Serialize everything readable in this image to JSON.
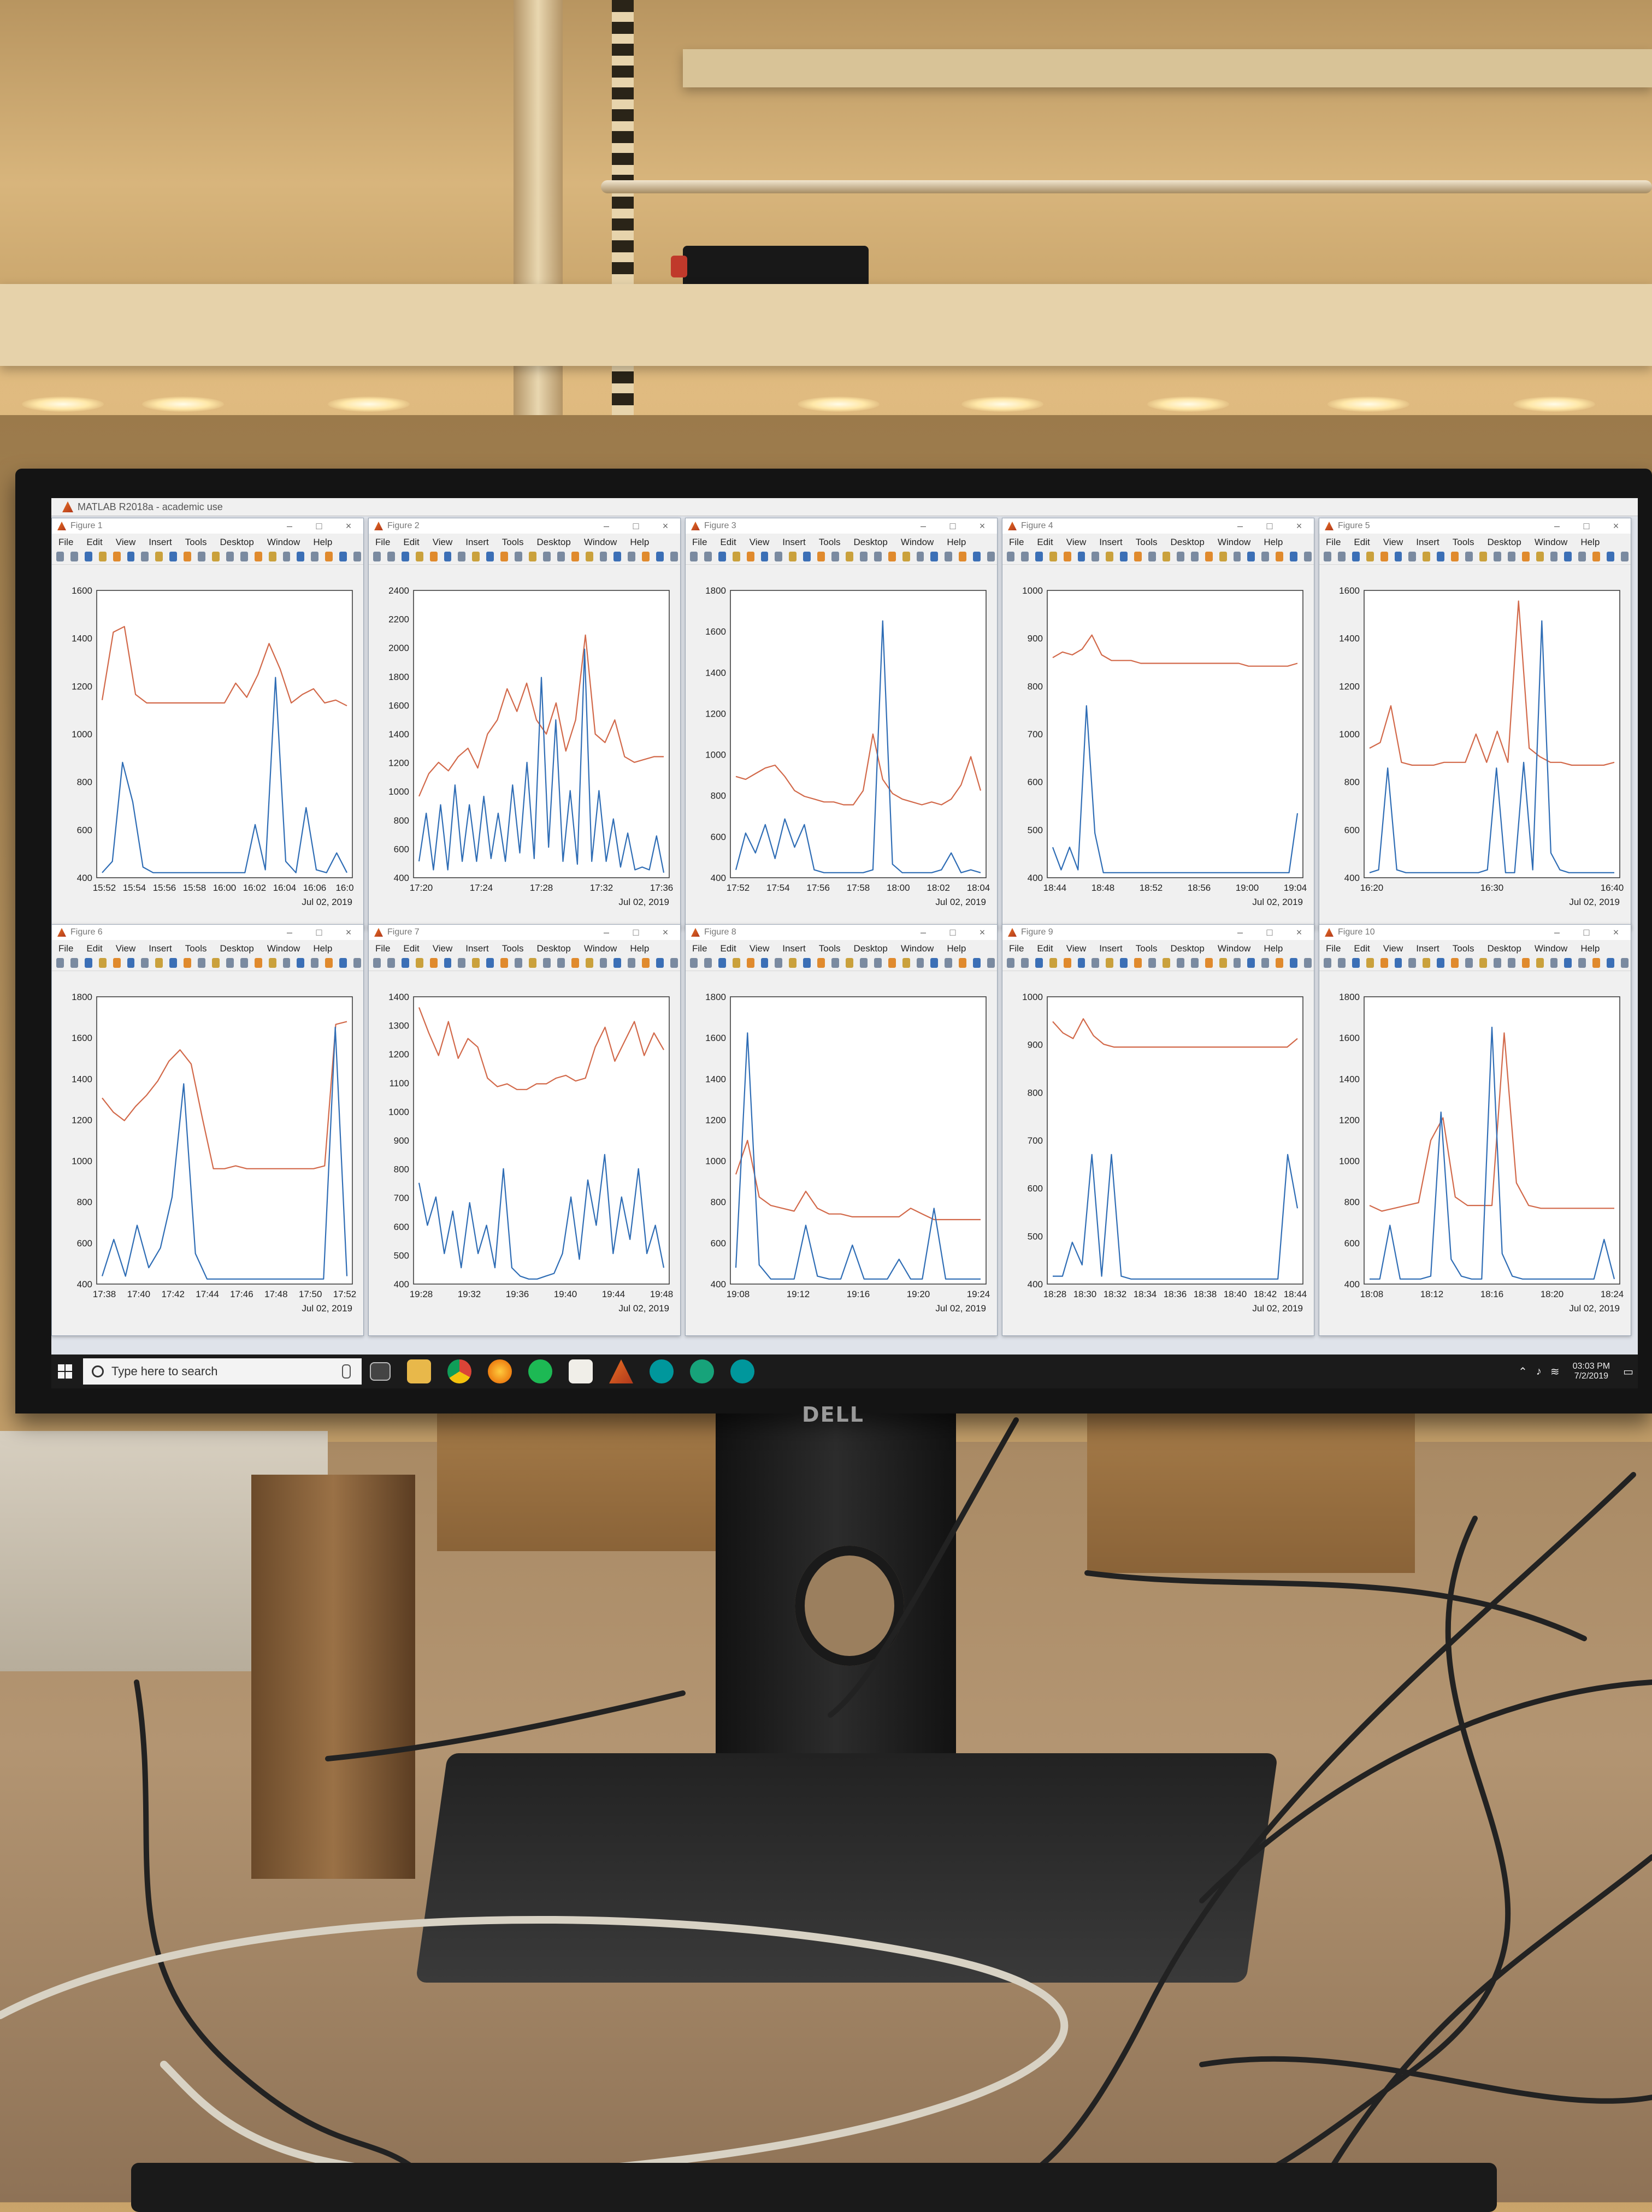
{
  "matlab": {
    "title": "MATLAB R2018a - academic use"
  },
  "menu_labels": [
    "File",
    "Edit",
    "View",
    "Insert",
    "Tools",
    "Desktop",
    "Window",
    "Help"
  ],
  "window_controls": {
    "minimize": "–",
    "maximize": "□",
    "close": "×"
  },
  "figures": [
    {
      "title": "Figure 1",
      "date": "Jul 02, 2019",
      "yticks": [
        "400",
        "600",
        "800",
        "1000",
        "1200",
        "1400",
        "1600"
      ],
      "ylim": [
        400,
        1600
      ],
      "xticks": [
        "15:52",
        "15:54",
        "15:56",
        "15:58",
        "16:00",
        "16:02",
        "16:04",
        "16:06",
        "16:0"
      ],
      "orange": [
        0.62,
        0.86,
        0.88,
        0.64,
        0.61,
        0.61,
        0.61,
        0.61,
        0.61,
        0.61,
        0.61,
        0.61,
        0.68,
        0.63,
        0.71,
        0.82,
        0.73,
        0.61,
        0.64,
        0.66,
        0.61,
        0.62,
        0.6
      ],
      "blue": [
        0.01,
        0.05,
        0.4,
        0.26,
        0.03,
        0.01,
        0.01,
        0.01,
        0.01,
        0.01,
        0.01,
        0.01,
        0.01,
        0.01,
        0.01,
        0.18,
        0.02,
        0.7,
        0.05,
        0.01,
        0.24,
        0.02,
        0.01,
        0.08,
        0.01
      ]
    },
    {
      "title": "Figure 2",
      "date": "Jul 02, 2019",
      "yticks": [
        "400",
        "600",
        "800",
        "1000",
        "1200",
        "1400",
        "1600",
        "1800",
        "2000",
        "2200",
        "2400"
      ],
      "ylim": [
        400,
        2400
      ],
      "xticks": [
        "17:20",
        "17:24",
        "17:28",
        "17:32",
        "17:36"
      ],
      "orange": [
        0.28,
        0.36,
        0.4,
        0.37,
        0.42,
        0.45,
        0.38,
        0.5,
        0.55,
        0.66,
        0.58,
        0.68,
        0.55,
        0.5,
        0.61,
        0.44,
        0.55,
        0.85,
        0.5,
        0.47,
        0.55,
        0.42,
        0.4,
        0.41,
        0.42,
        0.42
      ],
      "blue": [
        0.05,
        0.22,
        0.02,
        0.25,
        0.02,
        0.32,
        0.05,
        0.25,
        0.05,
        0.28,
        0.06,
        0.22,
        0.05,
        0.32,
        0.08,
        0.4,
        0.06,
        0.7,
        0.1,
        0.55,
        0.05,
        0.3,
        0.04,
        0.8,
        0.05,
        0.3,
        0.05,
        0.2,
        0.03,
        0.15,
        0.02,
        0.03,
        0.02,
        0.14,
        0.01
      ]
    },
    {
      "title": "Figure 3",
      "date": "Jul 02, 2019",
      "yticks": [
        "400",
        "600",
        "800",
        "1000",
        "1200",
        "1400",
        "1600",
        "1800"
      ],
      "ylim": [
        400,
        1800
      ],
      "xticks": [
        "17:52",
        "17:54",
        "17:56",
        "17:58",
        "18:00",
        "18:02",
        "18:04"
      ],
      "orange": [
        0.35,
        0.34,
        0.36,
        0.38,
        0.39,
        0.35,
        0.3,
        0.28,
        0.27,
        0.26,
        0.26,
        0.25,
        0.25,
        0.3,
        0.5,
        0.34,
        0.29,
        0.27,
        0.26,
        0.25,
        0.26,
        0.25,
        0.27,
        0.32,
        0.42,
        0.3
      ],
      "blue": [
        0.02,
        0.15,
        0.08,
        0.18,
        0.06,
        0.2,
        0.1,
        0.18,
        0.02,
        0.01,
        0.01,
        0.01,
        0.01,
        0.01,
        0.02,
        0.9,
        0.04,
        0.01,
        0.01,
        0.01,
        0.01,
        0.02,
        0.08,
        0.01,
        0.02,
        0.01
      ]
    },
    {
      "title": "Figure 4",
      "date": "Jul 02, 2019",
      "yticks": [
        "400",
        "500",
        "600",
        "700",
        "800",
        "900",
        "1000"
      ],
      "ylim": [
        400,
        1000
      ],
      "xticks": [
        "18:44",
        "18:48",
        "18:52",
        "18:56",
        "19:00",
        "19:04"
      ],
      "orange": [
        0.77,
        0.79,
        0.78,
        0.8,
        0.85,
        0.78,
        0.76,
        0.76,
        0.76,
        0.75,
        0.75,
        0.75,
        0.75,
        0.75,
        0.75,
        0.75,
        0.75,
        0.75,
        0.75,
        0.75,
        0.74,
        0.74,
        0.74,
        0.74,
        0.74,
        0.75
      ],
      "blue": [
        0.1,
        0.02,
        0.1,
        0.02,
        0.6,
        0.15,
        0.01,
        0.01,
        0.01,
        0.01,
        0.01,
        0.01,
        0.01,
        0.01,
        0.01,
        0.01,
        0.01,
        0.01,
        0.01,
        0.01,
        0.01,
        0.01,
        0.01,
        0.01,
        0.01,
        0.01,
        0.01,
        0.01,
        0.01,
        0.22
      ]
    },
    {
      "title": "Figure 5",
      "date": "Jul 02, 2019",
      "yticks": [
        "400",
        "600",
        "800",
        "1000",
        "1200",
        "1400",
        "1600"
      ],
      "ylim": [
        400,
        1600
      ],
      "xticks": [
        "16:20",
        "16:30",
        "16:40"
      ],
      "orange": [
        0.45,
        0.47,
        0.6,
        0.4,
        0.39,
        0.39,
        0.39,
        0.4,
        0.4,
        0.4,
        0.5,
        0.4,
        0.51,
        0.4,
        0.97,
        0.45,
        0.42,
        0.4,
        0.4,
        0.39,
        0.39,
        0.39,
        0.39,
        0.4
      ],
      "blue": [
        0.01,
        0.02,
        0.38,
        0.02,
        0.01,
        0.01,
        0.01,
        0.01,
        0.01,
        0.01,
        0.01,
        0.01,
        0.01,
        0.02,
        0.38,
        0.01,
        0.01,
        0.4,
        0.02,
        0.9,
        0.08,
        0.02,
        0.01,
        0.01,
        0.01,
        0.01,
        0.01,
        0.01
      ]
    },
    {
      "title": "Figure 6",
      "date": "Jul 02, 2019",
      "yticks": [
        "400",
        "600",
        "800",
        "1000",
        "1200",
        "1400",
        "1600",
        "1800"
      ],
      "ylim": [
        400,
        1800
      ],
      "xticks": [
        "17:38",
        "17:40",
        "17:42",
        "17:44",
        "17:46",
        "17:48",
        "17:50",
        "17:52"
      ],
      "orange": [
        0.65,
        0.6,
        0.57,
        0.62,
        0.66,
        0.71,
        0.78,
        0.82,
        0.77,
        0.58,
        0.4,
        0.4,
        0.41,
        0.4,
        0.4,
        0.4,
        0.4,
        0.4,
        0.4,
        0.4,
        0.41,
        0.91,
        0.92
      ],
      "blue": [
        0.02,
        0.15,
        0.02,
        0.2,
        0.05,
        0.12,
        0.3,
        0.7,
        0.1,
        0.01,
        0.01,
        0.01,
        0.01,
        0.01,
        0.01,
        0.01,
        0.01,
        0.01,
        0.01,
        0.01,
        0.9,
        0.02
      ]
    },
    {
      "title": "Figure 7",
      "date": "Jul 02, 2019",
      "yticks": [
        "400",
        "500",
        "600",
        "700",
        "800",
        "900",
        "1000",
        "1100",
        "1200",
        "1300",
        "1400"
      ],
      "ylim": [
        400,
        1400
      ],
      "xticks": [
        "19:28",
        "19:32",
        "19:36",
        "19:40",
        "19:44",
        "19:48"
      ],
      "orange": [
        0.97,
        0.88,
        0.8,
        0.92,
        0.79,
        0.86,
        0.83,
        0.72,
        0.69,
        0.7,
        0.68,
        0.68,
        0.7,
        0.7,
        0.72,
        0.73,
        0.71,
        0.72,
        0.83,
        0.9,
        0.78,
        0.85,
        0.92,
        0.8,
        0.88,
        0.82
      ],
      "blue": [
        0.35,
        0.2,
        0.3,
        0.1,
        0.25,
        0.05,
        0.28,
        0.1,
        0.2,
        0.05,
        0.4,
        0.05,
        0.02,
        0.01,
        0.01,
        0.02,
        0.03,
        0.1,
        0.3,
        0.08,
        0.36,
        0.2,
        0.45,
        0.1,
        0.3,
        0.15,
        0.4,
        0.1,
        0.2,
        0.05
      ]
    },
    {
      "title": "Figure 8",
      "date": "Jul 02, 2019",
      "yticks": [
        "400",
        "600",
        "800",
        "1000",
        "1200",
        "1400",
        "1600",
        "1800"
      ],
      "ylim": [
        400,
        1800
      ],
      "xticks": [
        "19:08",
        "19:12",
        "19:16",
        "19:20",
        "19:24"
      ],
      "orange": [
        0.38,
        0.5,
        0.3,
        0.27,
        0.26,
        0.25,
        0.32,
        0.26,
        0.24,
        0.24,
        0.23,
        0.23,
        0.23,
        0.23,
        0.23,
        0.26,
        0.24,
        0.22,
        0.22,
        0.22,
        0.22,
        0.22
      ],
      "blue": [
        0.05,
        0.88,
        0.06,
        0.01,
        0.01,
        0.01,
        0.2,
        0.02,
        0.01,
        0.01,
        0.13,
        0.01,
        0.01,
        0.01,
        0.08,
        0.01,
        0.01,
        0.26,
        0.01,
        0.01,
        0.01,
        0.01
      ]
    },
    {
      "title": "Figure 9",
      "date": "Jul 02, 2019",
      "yticks": [
        "400",
        "500",
        "600",
        "700",
        "800",
        "900",
        "1000"
      ],
      "ylim": [
        400,
        1000
      ],
      "xticks": [
        "18:28",
        "18:30",
        "18:32",
        "18:34",
        "18:36",
        "18:38",
        "18:40",
        "18:42",
        "18:44"
      ],
      "orange": [
        0.92,
        0.88,
        0.86,
        0.93,
        0.87,
        0.84,
        0.83,
        0.83,
        0.83,
        0.83,
        0.83,
        0.83,
        0.83,
        0.83,
        0.83,
        0.83,
        0.83,
        0.83,
        0.83,
        0.83,
        0.83,
        0.83,
        0.83,
        0.83,
        0.86
      ],
      "blue": [
        0.02,
        0.02,
        0.14,
        0.06,
        0.45,
        0.02,
        0.45,
        0.02,
        0.01,
        0.01,
        0.01,
        0.01,
        0.01,
        0.01,
        0.01,
        0.01,
        0.01,
        0.01,
        0.01,
        0.01,
        0.01,
        0.01,
        0.01,
        0.01,
        0.45,
        0.26
      ]
    },
    {
      "title": "Figure 10",
      "date": "Jul 02, 2019",
      "yticks": [
        "400",
        "600",
        "800",
        "1000",
        "1200",
        "1400",
        "1600",
        "1800"
      ],
      "ylim": [
        400,
        1800
      ],
      "xticks": [
        "18:08",
        "18:12",
        "18:16",
        "18:20",
        "18:24"
      ],
      "orange": [
        0.27,
        0.25,
        0.26,
        0.27,
        0.28,
        0.5,
        0.58,
        0.3,
        0.27,
        0.27,
        0.27,
        0.88,
        0.35,
        0.27,
        0.26,
        0.26,
        0.26,
        0.26,
        0.26,
        0.26,
        0.26
      ],
      "blue": [
        0.01,
        0.01,
        0.2,
        0.01,
        0.01,
        0.01,
        0.02,
        0.6,
        0.08,
        0.02,
        0.01,
        0.01,
        0.9,
        0.1,
        0.02,
        0.01,
        0.01,
        0.01,
        0.01,
        0.01,
        0.01,
        0.01,
        0.01,
        0.15,
        0.01
      ]
    }
  ],
  "taskbar": {
    "search_placeholder": "Type here to search",
    "time": "03:03 PM",
    "date": "7/2/2019"
  },
  "monitor_brand": "DELL",
  "colors": {
    "series_blue": "#2f6db5",
    "series_orange": "#d2694a",
    "axes_bg": "#ffffff",
    "window_bg": "#f0f0f0"
  }
}
